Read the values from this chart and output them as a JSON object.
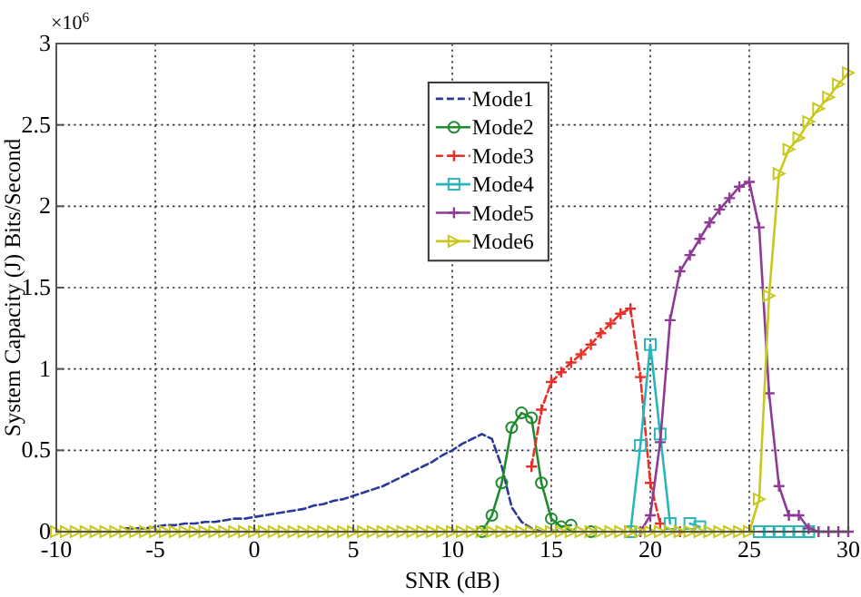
{
  "chart_data": {
    "type": "line",
    "xlabel": "SNR (dB)",
    "ylabel": "System Capacity (J) Bits/Second",
    "annotations": [
      "×10$^{6}$"
    ],
    "x": [
      -10,
      -9.5,
      -9,
      -8.5,
      -8,
      -7.5,
      -7,
      -6.5,
      -6,
      -5.5,
      -5,
      -4.5,
      -4,
      -3.5,
      -3,
      -2.5,
      -2,
      -1.5,
      -1,
      -0.5,
      0,
      0.5,
      1,
      1.5,
      2,
      2.5,
      3,
      3.5,
      4,
      4.5,
      5,
      5.5,
      6,
      6.5,
      7,
      7.5,
      8,
      8.5,
      9,
      9.5,
      10,
      10.5,
      11,
      11.5,
      12,
      12.5,
      13,
      13.5,
      14,
      14.5,
      15,
      15.5,
      16,
      16.5,
      17,
      17.5,
      18,
      18.5,
      19,
      19.5,
      20,
      20.5,
      21,
      21.5,
      22,
      22.5,
      23,
      23.5,
      24,
      24.5,
      25,
      25.5,
      26,
      26.5,
      27,
      27.5,
      28,
      28.5,
      29,
      29.5,
      30
    ],
    "xlim": [
      -10,
      30
    ],
    "xticks": [
      -10,
      -5,
      0,
      5,
      10,
      15,
      20,
      25,
      30
    ],
    "ylim": [
      0,
      3
    ],
    "yticks": [
      0,
      0.5,
      1,
      1.5,
      2,
      2.5,
      3
    ],
    "grid": true,
    "legend": "top",
    "series": [
      {
        "name": "Mode1",
        "color": "#2b3a9a",
        "marker": "none",
        "line_style": "dashed",
        "values": [
          null,
          null,
          null,
          null,
          null,
          null,
          null,
          0.02,
          0.02,
          0.02,
          0.03,
          0.04,
          0.04,
          0.05,
          0.05,
          0.06,
          0.06,
          0.07,
          0.08,
          0.08,
          0.09,
          0.1,
          0.11,
          0.12,
          0.13,
          0.14,
          0.16,
          0.17,
          0.19,
          0.2,
          0.22,
          0.24,
          0.26,
          0.28,
          0.31,
          0.34,
          0.37,
          0.4,
          0.43,
          0.47,
          0.5,
          0.54,
          0.57,
          0.6,
          0.57,
          0.4,
          0.15,
          0.06,
          0.02,
          0,
          null,
          null,
          null,
          null,
          null,
          null,
          null,
          null,
          null,
          null,
          null,
          null,
          null,
          null,
          null,
          null,
          null,
          null,
          null,
          null,
          null,
          null,
          null,
          null,
          null,
          null,
          null,
          null,
          null,
          null,
          null
        ]
      },
      {
        "name": "Mode2",
        "color": "#1f8a2e",
        "marker": "circle",
        "line_style": "solid",
        "values": [
          null,
          null,
          null,
          null,
          null,
          null,
          null,
          null,
          null,
          null,
          null,
          null,
          null,
          null,
          null,
          null,
          null,
          null,
          null,
          null,
          null,
          null,
          null,
          null,
          null,
          null,
          null,
          null,
          null,
          null,
          null,
          null,
          null,
          null,
          null,
          null,
          null,
          null,
          null,
          null,
          null,
          null,
          null,
          0,
          0.1,
          0.3,
          0.64,
          0.73,
          0.7,
          0.3,
          0.08,
          0.03,
          0.04,
          null,
          0,
          null,
          null,
          null,
          null,
          null,
          null,
          null,
          null,
          null,
          null,
          null,
          null,
          null,
          null,
          null,
          null,
          null,
          null,
          null,
          null,
          null,
          null,
          null,
          null,
          null,
          null
        ]
      },
      {
        "name": "Mode3",
        "color": "#e8302a",
        "marker": "cross",
        "line_style": "dashed",
        "values": [
          null,
          null,
          null,
          null,
          null,
          null,
          null,
          null,
          null,
          null,
          null,
          null,
          null,
          null,
          null,
          null,
          null,
          null,
          null,
          null,
          null,
          null,
          null,
          null,
          null,
          null,
          null,
          null,
          null,
          null,
          null,
          null,
          null,
          null,
          null,
          null,
          null,
          null,
          null,
          null,
          null,
          null,
          null,
          null,
          null,
          null,
          null,
          null,
          0.4,
          0.75,
          0.92,
          0.98,
          1.04,
          1.09,
          1.15,
          1.22,
          1.28,
          1.34,
          1.37,
          0.95,
          0.3,
          0.05,
          null,
          0,
          null,
          null,
          null,
          null,
          null,
          null,
          null,
          null,
          null,
          null,
          null,
          null,
          null,
          null,
          null,
          null,
          null
        ]
      },
      {
        "name": "Mode4",
        "color": "#2ab5b8",
        "marker": "square",
        "line_style": "solid",
        "values": [
          null,
          null,
          null,
          null,
          null,
          null,
          null,
          null,
          null,
          null,
          null,
          null,
          null,
          null,
          null,
          null,
          null,
          null,
          null,
          null,
          null,
          null,
          null,
          null,
          null,
          null,
          null,
          null,
          null,
          null,
          null,
          null,
          null,
          null,
          null,
          null,
          null,
          null,
          null,
          null,
          null,
          null,
          null,
          null,
          null,
          null,
          null,
          null,
          null,
          null,
          null,
          null,
          null,
          null,
          null,
          null,
          null,
          null,
          0,
          0.53,
          1.15,
          0.6,
          0.05,
          null,
          0.05,
          0.03,
          null,
          null,
          null,
          null,
          null,
          0,
          0,
          0,
          0,
          0,
          0,
          null,
          null,
          null,
          null
        ]
      },
      {
        "name": "Mode5",
        "color": "#8e3a96",
        "marker": "cross",
        "line_style": "solid",
        "values": [
          null,
          null,
          null,
          null,
          null,
          null,
          null,
          null,
          null,
          null,
          null,
          null,
          null,
          null,
          null,
          null,
          null,
          null,
          null,
          null,
          null,
          null,
          null,
          null,
          null,
          null,
          null,
          null,
          null,
          null,
          null,
          null,
          null,
          null,
          null,
          null,
          null,
          null,
          null,
          null,
          null,
          null,
          null,
          null,
          null,
          null,
          null,
          null,
          null,
          null,
          null,
          null,
          null,
          null,
          null,
          null,
          null,
          null,
          null,
          0,
          0.1,
          0.55,
          1.3,
          1.6,
          1.7,
          1.8,
          1.9,
          1.98,
          2.05,
          2.12,
          2.15,
          1.87,
          0.85,
          0.28,
          0.1,
          0.1,
          0.02,
          0,
          0,
          0,
          0
        ]
      },
      {
        "name": "Mode6",
        "color": "#c8c81e",
        "marker": "triangle",
        "line_style": "solid",
        "values": [
          0,
          0,
          0,
          0,
          0,
          0,
          0,
          0,
          0,
          0,
          0,
          0,
          0,
          0,
          0,
          0,
          0,
          0,
          0,
          0,
          0,
          0,
          0,
          0,
          0,
          0,
          0,
          0,
          0,
          0,
          0,
          0,
          0,
          0,
          0,
          0,
          0,
          0,
          0,
          0,
          0,
          0,
          0,
          0,
          0,
          0,
          0,
          0,
          0,
          0,
          0,
          0,
          0,
          0,
          0,
          0,
          0,
          0,
          0,
          0,
          0,
          0,
          0,
          0,
          0,
          0,
          0,
          0,
          0,
          0,
          0,
          0.2,
          1.45,
          2.2,
          2.35,
          2.42,
          2.52,
          2.6,
          2.67,
          2.75,
          2.82
        ]
      }
    ]
  }
}
